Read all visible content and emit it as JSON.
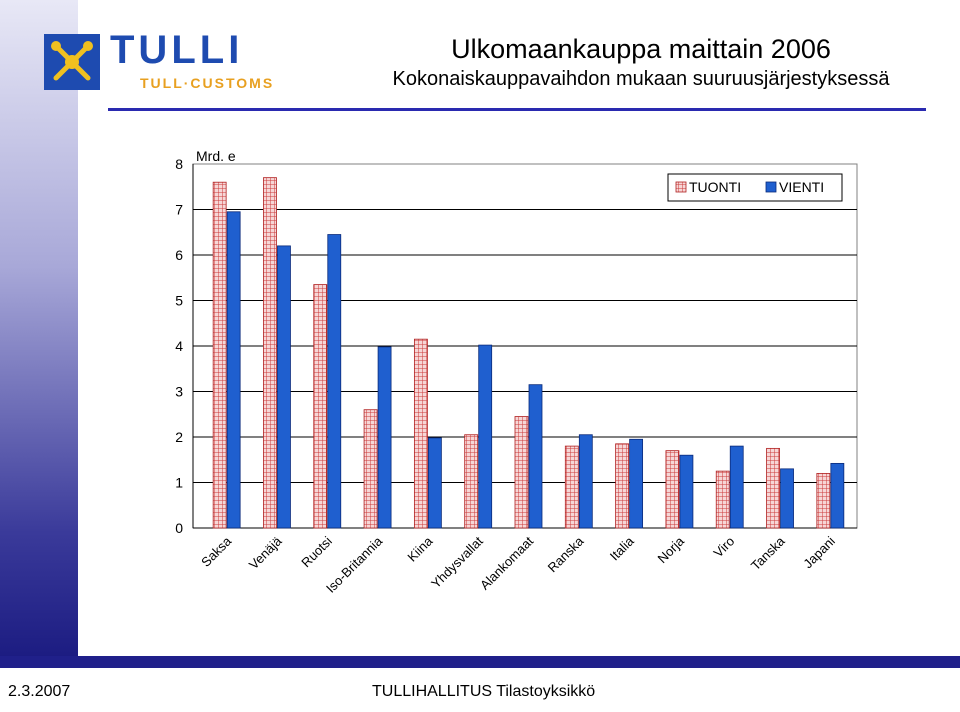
{
  "header": {
    "brand": "TULLI",
    "brand_sub": "TULL·CUSTOMS",
    "title": "Ulkomaankauppa maittain 2006",
    "subtitle": "Kokonaiskauppavaihdon mukaan suuruusjärjestyksessä"
  },
  "footer": {
    "date": "2.3.2007",
    "source": "TULLIHALLITUS Tilastoyksikkö"
  },
  "colors": {
    "accent": "#2a2ab0",
    "import_fill": "#f4c8c8",
    "import_grid": "#d04040",
    "export_fill": "#1f5fcf"
  },
  "chart_data": {
    "type": "bar",
    "ylabel": "Mrd. e",
    "ylim": [
      0,
      8
    ],
    "yticks": [
      0,
      1,
      2,
      3,
      4,
      5,
      6,
      7,
      8
    ],
    "grid": true,
    "legend_position": "top-right",
    "categories": [
      "Saksa",
      "Venäjä",
      "Ruotsi",
      "Iso-Britannia",
      "Kiina",
      "Yhdysvallat",
      "Alankomaat",
      "Ranska",
      "Italia",
      "Norja",
      "Viro",
      "Tanska",
      "Japani"
    ],
    "series": [
      {
        "name": "TUONTI",
        "values": [
          7.6,
          7.7,
          5.35,
          2.6,
          4.15,
          2.05,
          2.45,
          1.8,
          1.85,
          1.7,
          1.25,
          1.75,
          1.2
        ]
      },
      {
        "name": "VIENTI",
        "values": [
          6.95,
          6.2,
          6.45,
          3.98,
          1.98,
          4.02,
          3.15,
          2.05,
          1.95,
          1.6,
          1.8,
          1.3,
          1.42
        ]
      }
    ]
  }
}
